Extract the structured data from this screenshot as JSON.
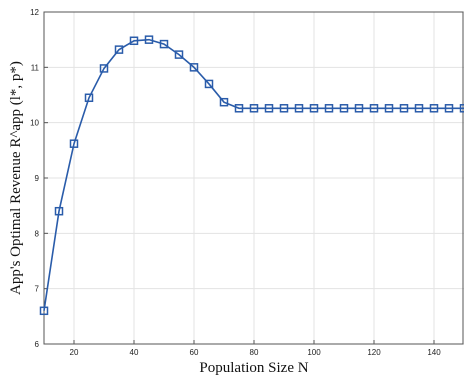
{
  "chart_data": {
    "type": "line",
    "xlabel": "Population Size N",
    "ylabel": "App's Optimal Revenue R^app (l*, p*)",
    "xlim": [
      10,
      150
    ],
    "ylim": [
      6,
      12
    ],
    "xticks": [
      20,
      40,
      60,
      80,
      100,
      120,
      140
    ],
    "yticks": [
      6,
      7,
      8,
      9,
      10,
      11,
      12
    ],
    "grid": true,
    "marker": "square",
    "color": "#2a5caa",
    "series": [
      {
        "x": [
          10,
          15,
          20,
          25,
          30,
          35,
          40,
          45,
          50,
          55,
          60,
          65,
          70,
          75,
          80,
          85,
          90,
          95,
          100,
          105,
          110,
          115,
          120,
          125,
          130,
          135,
          140,
          145,
          150
        ],
        "y": [
          6.6,
          8.4,
          9.62,
          10.45,
          10.98,
          11.32,
          11.48,
          11.5,
          11.42,
          11.23,
          11.0,
          10.7,
          10.37,
          10.26,
          10.26,
          10.26,
          10.26,
          10.26,
          10.26,
          10.26,
          10.26,
          10.26,
          10.26,
          10.26,
          10.26,
          10.26,
          10.26,
          10.26,
          10.26
        ]
      }
    ]
  }
}
